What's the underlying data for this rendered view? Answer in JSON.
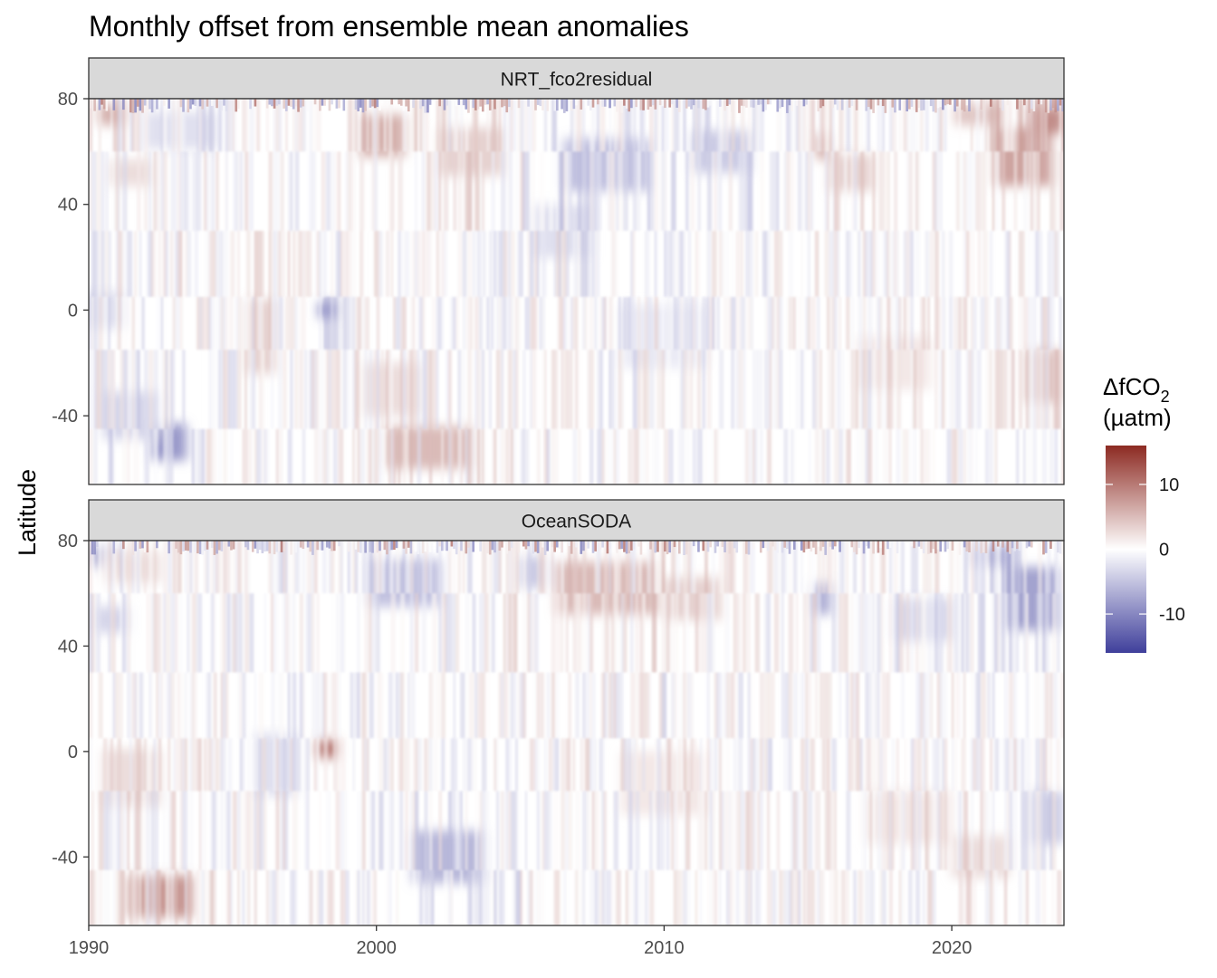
{
  "chart_data": {
    "type": "heatmap",
    "title": "Monthly offset from ensemble mean anomalies",
    "ylabel": "Latitude",
    "xlabel": "",
    "xlim": [
      1990,
      2023.9
    ],
    "ylim": [
      -66,
      80
    ],
    "x_ticks": [
      1990,
      2000,
      2010,
      2020
    ],
    "y_ticks": [
      80,
      40,
      0,
      -40
    ],
    "panels": [
      {
        "name": "NRT_fco2residual",
        "blobs": [
          {
            "x": 1990.8,
            "y": 74,
            "w": 0.9,
            "h": 8,
            "v": 7
          },
          {
            "x": 1991.5,
            "y": 52,
            "w": 1.5,
            "h": 10,
            "v": 3
          },
          {
            "x": 1993.2,
            "y": 68,
            "w": 2.5,
            "h": 14,
            "v": -3
          },
          {
            "x": 1992.8,
            "y": -50,
            "w": 1.2,
            "h": 14,
            "v": -10
          },
          {
            "x": 1991.5,
            "y": -40,
            "w": 2.0,
            "h": 18,
            "v": -4
          },
          {
            "x": 1990.5,
            "y": 0,
            "w": 1.5,
            "h": 14,
            "v": -3
          },
          {
            "x": 1996.0,
            "y": -10,
            "w": 1.0,
            "h": 28,
            "v": 4
          },
          {
            "x": 1998.3,
            "y": 0,
            "w": 0.6,
            "h": 6,
            "v": -12
          },
          {
            "x": 2000.2,
            "y": 66,
            "w": 1.6,
            "h": 16,
            "v": 7
          },
          {
            "x": 2003.3,
            "y": 60,
            "w": 2.2,
            "h": 18,
            "v": 4
          },
          {
            "x": 2001.8,
            "y": -52,
            "w": 3.0,
            "h": 16,
            "v": 6
          },
          {
            "x": 2000.5,
            "y": -30,
            "w": 2.0,
            "h": 20,
            "v": 3
          },
          {
            "x": 2008.0,
            "y": 55,
            "w": 3.0,
            "h": 20,
            "v": -6
          },
          {
            "x": 2012.0,
            "y": 60,
            "w": 2.0,
            "h": 16,
            "v": -5
          },
          {
            "x": 2006.5,
            "y": 30,
            "w": 2.0,
            "h": 20,
            "v": -3
          },
          {
            "x": 2016.5,
            "y": 52,
            "w": 1.5,
            "h": 14,
            "v": 4
          },
          {
            "x": 2015.5,
            "y": 62,
            "w": 0.4,
            "h": 10,
            "v": 8
          },
          {
            "x": 2022.5,
            "y": 58,
            "w": 2.0,
            "h": 22,
            "v": 8
          },
          {
            "x": 2023.3,
            "y": 72,
            "w": 1.2,
            "h": 10,
            "v": 10
          },
          {
            "x": 2023.2,
            "y": -25,
            "w": 1.2,
            "h": 20,
            "v": 6
          },
          {
            "x": 2021.0,
            "y": 74,
            "w": 1.8,
            "h": 8,
            "v": 5
          },
          {
            "x": 2010.0,
            "y": -10,
            "w": 3.0,
            "h": 24,
            "v": -2
          },
          {
            "x": 2018.0,
            "y": -20,
            "w": 2.5,
            "h": 20,
            "v": 2
          }
        ]
      },
      {
        "name": "OceanSODA",
        "blobs": [
          {
            "x": 1990.5,
            "y": 74,
            "w": 1.0,
            "h": 8,
            "v": -7
          },
          {
            "x": 1992.5,
            "y": -55,
            "w": 2.2,
            "h": 16,
            "v": 9
          },
          {
            "x": 1991.5,
            "y": -10,
            "w": 2.0,
            "h": 22,
            "v": 3
          },
          {
            "x": 1991.5,
            "y": 70,
            "w": 2.0,
            "h": 12,
            "v": 3
          },
          {
            "x": 1990.8,
            "y": 50,
            "w": 1.2,
            "h": 10,
            "v": -4
          },
          {
            "x": 1998.3,
            "y": 1,
            "w": 0.7,
            "h": 7,
            "v": 12
          },
          {
            "x": 2001.0,
            "y": 64,
            "w": 2.5,
            "h": 18,
            "v": -6
          },
          {
            "x": 2002.5,
            "y": -40,
            "w": 2.5,
            "h": 20,
            "v": -7
          },
          {
            "x": 1996.5,
            "y": -5,
            "w": 1.5,
            "h": 24,
            "v": -3
          },
          {
            "x": 2008.0,
            "y": 62,
            "w": 3.5,
            "h": 20,
            "v": 6
          },
          {
            "x": 2011.0,
            "y": 58,
            "w": 2.0,
            "h": 16,
            "v": 4
          },
          {
            "x": 2005.5,
            "y": 68,
            "w": 1.0,
            "h": 12,
            "v": -5
          },
          {
            "x": 2015.5,
            "y": 58,
            "w": 0.6,
            "h": 12,
            "v": -8
          },
          {
            "x": 2019.0,
            "y": 50,
            "w": 2.0,
            "h": 16,
            "v": -4
          },
          {
            "x": 2022.8,
            "y": 58,
            "w": 1.8,
            "h": 24,
            "v": -9
          },
          {
            "x": 2023.3,
            "y": -25,
            "w": 1.2,
            "h": 20,
            "v": -5
          },
          {
            "x": 2021.5,
            "y": 74,
            "w": 1.5,
            "h": 8,
            "v": -6
          },
          {
            "x": 2010.0,
            "y": -12,
            "w": 3.0,
            "h": 24,
            "v": 2
          },
          {
            "x": 2018.5,
            "y": -25,
            "w": 3.0,
            "h": 20,
            "v": 2
          },
          {
            "x": 2021.0,
            "y": -40,
            "w": 2.0,
            "h": 16,
            "v": 3
          }
        ]
      }
    ],
    "legend": {
      "title_main": "ΔfCO",
      "title_sub": "2",
      "units": "(µatm)",
      "limits": [
        -16,
        16
      ],
      "ticks": [
        10,
        0,
        -10
      ],
      "colors": {
        "low": "#3f3f9b",
        "mid": "#ffffff",
        "high": "#8c2a22"
      }
    }
  }
}
